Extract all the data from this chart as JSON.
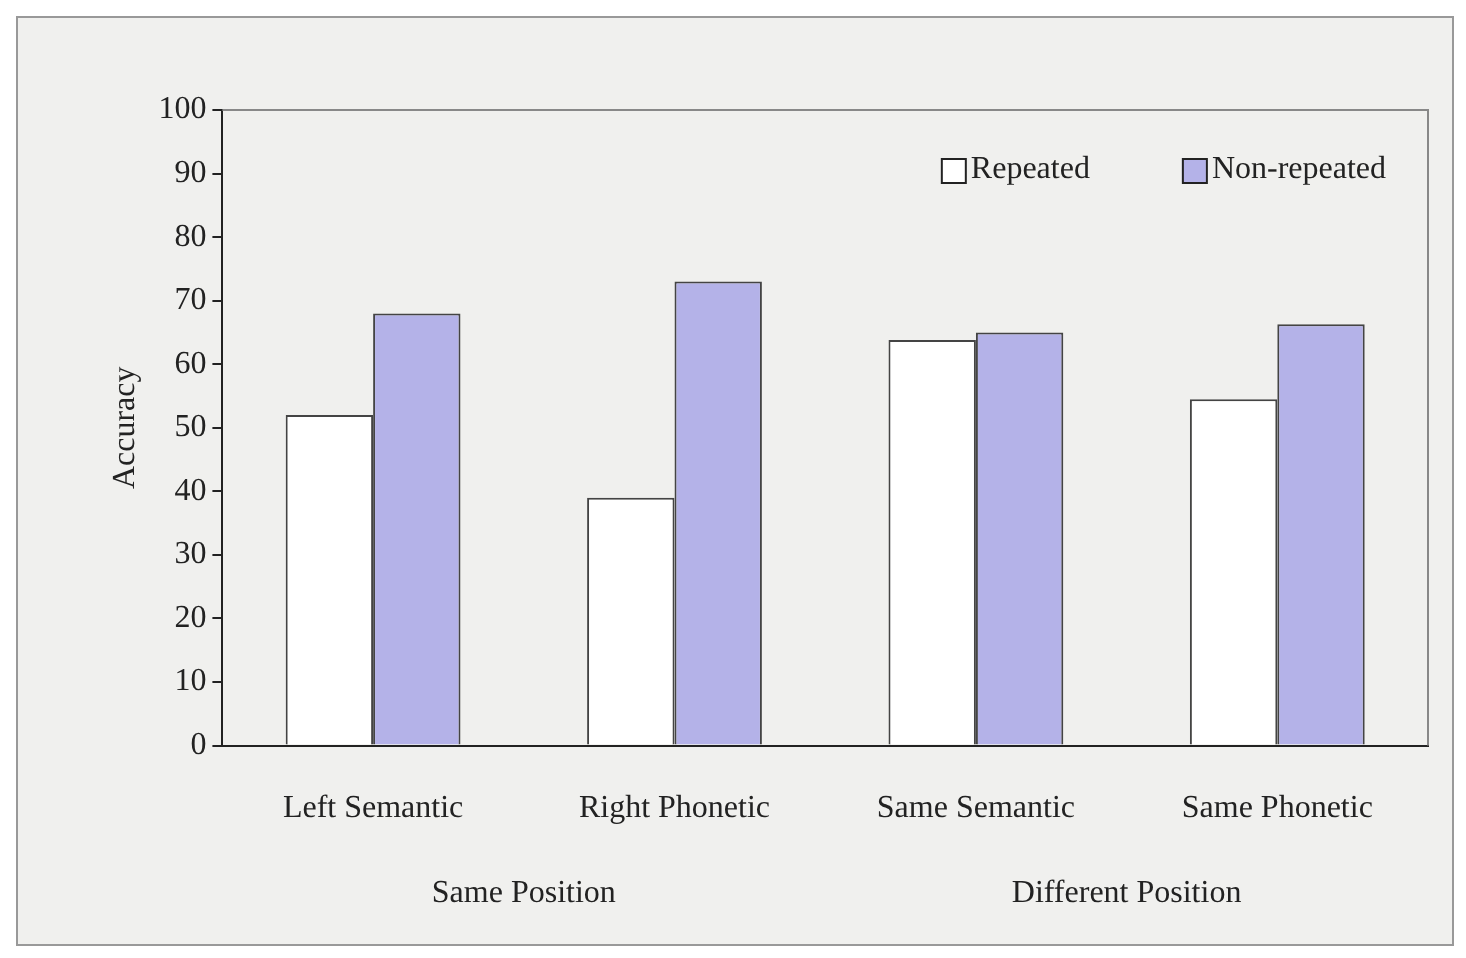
{
  "chart_data": {
    "type": "bar",
    "ylabel": "Accuracy",
    "categories": [
      "Left Semantic",
      "Right Phonetic",
      "Same Semantic",
      "Same Phonetic"
    ],
    "series": [
      {
        "name": "Repeated",
        "color": "#ffffff",
        "values": [
          52,
          39,
          63.8,
          54.5
        ]
      },
      {
        "name": "Non-repeated",
        "color": "#b4b2e8",
        "values": [
          68,
          73,
          65,
          66.3
        ]
      }
    ],
    "ylim": [
      0,
      100
    ],
    "yticks": [
      0,
      10,
      20,
      30,
      40,
      50,
      60,
      70,
      80,
      90,
      100
    ],
    "grid": false,
    "legend": "top right",
    "annotations": [
      "Same Position",
      "Different Position"
    ]
  }
}
